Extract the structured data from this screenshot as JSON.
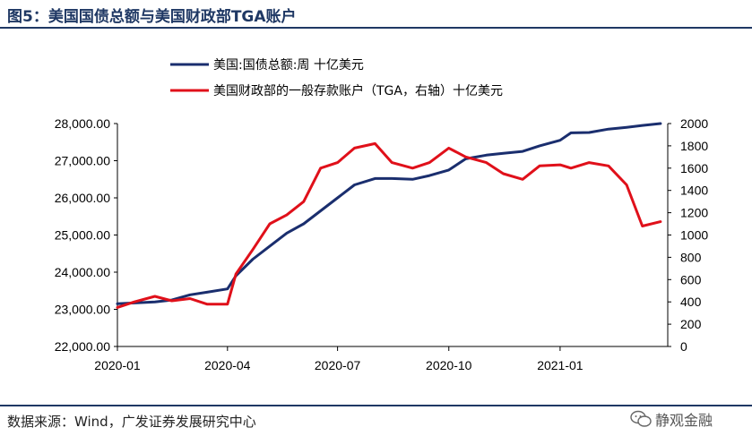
{
  "figure": {
    "title": "图5：美国国债总额与美国财政部TGA账户",
    "source": "数据来源：Wind，广发证券发展研究中心",
    "watermark": "静观金融"
  },
  "colors": {
    "title": "#1f3864",
    "debt": "#1a2e6e",
    "tga": "#e0101a",
    "axis": "#000000"
  },
  "chart_data": {
    "type": "line",
    "title": "",
    "x_ticks": [
      "2020-01",
      "2020-04",
      "2020-07",
      "2020-10",
      "2021-01"
    ],
    "x_range": [
      "2020-01-01",
      "2021-03-31"
    ],
    "y_left": {
      "label": "",
      "range": [
        22000,
        28000
      ],
      "ticks": [
        "22,000.00",
        "23,000.00",
        "24,000.00",
        "25,000.00",
        "26,000.00",
        "27,000.00",
        "28,000.00"
      ]
    },
    "y_right": {
      "label": "",
      "range": [
        0,
        2000
      ],
      "ticks": [
        "0",
        "200",
        "400",
        "600",
        "800",
        "1000",
        "1200",
        "1400",
        "1600",
        "1800",
        "2000"
      ]
    },
    "grid": false,
    "legend_position": "top",
    "series": [
      {
        "name": "美国:国债总额:周 十亿美元",
        "axis": "left",
        "color": "#1a2e6e",
        "points": [
          [
            "2020-01-01",
            23150
          ],
          [
            "2020-01-15",
            23170
          ],
          [
            "2020-02-01",
            23200
          ],
          [
            "2020-02-15",
            23250
          ],
          [
            "2020-03-01",
            23390
          ],
          [
            "2020-03-15",
            23460
          ],
          [
            "2020-04-01",
            23550
          ],
          [
            "2020-04-08",
            23900
          ],
          [
            "2020-04-22",
            24350
          ],
          [
            "2020-05-06",
            24700
          ],
          [
            "2020-05-20",
            25050
          ],
          [
            "2020-06-03",
            25300
          ],
          [
            "2020-06-17",
            25650
          ],
          [
            "2020-07-01",
            26000
          ],
          [
            "2020-07-15",
            26350
          ],
          [
            "2020-08-01",
            26520
          ],
          [
            "2020-08-15",
            26520
          ],
          [
            "2020-09-01",
            26500
          ],
          [
            "2020-09-15",
            26600
          ],
          [
            "2020-10-01",
            26750
          ],
          [
            "2020-10-15",
            27050
          ],
          [
            "2020-11-01",
            27150
          ],
          [
            "2020-11-15",
            27200
          ],
          [
            "2020-12-01",
            27250
          ],
          [
            "2020-12-15",
            27400
          ],
          [
            "2021-01-01",
            27550
          ],
          [
            "2021-01-10",
            27750
          ],
          [
            "2021-01-25",
            27760
          ],
          [
            "2021-02-10",
            27850
          ],
          [
            "2021-02-25",
            27900
          ],
          [
            "2021-03-10",
            27950
          ],
          [
            "2021-03-25",
            28000
          ]
        ]
      },
      {
        "name": "美国财政部的一般存款账户（TGA，右轴）十亿美元",
        "axis": "right",
        "color": "#e0101a",
        "points": [
          [
            "2020-01-01",
            350
          ],
          [
            "2020-01-15",
            400
          ],
          [
            "2020-02-01",
            450
          ],
          [
            "2020-02-15",
            410
          ],
          [
            "2020-03-01",
            430
          ],
          [
            "2020-03-15",
            380
          ],
          [
            "2020-04-01",
            380
          ],
          [
            "2020-04-08",
            650
          ],
          [
            "2020-04-22",
            870
          ],
          [
            "2020-05-06",
            1100
          ],
          [
            "2020-05-20",
            1180
          ],
          [
            "2020-06-03",
            1300
          ],
          [
            "2020-06-17",
            1600
          ],
          [
            "2020-07-01",
            1650
          ],
          [
            "2020-07-15",
            1780
          ],
          [
            "2020-08-01",
            1820
          ],
          [
            "2020-08-15",
            1650
          ],
          [
            "2020-09-01",
            1600
          ],
          [
            "2020-09-15",
            1650
          ],
          [
            "2020-10-01",
            1780
          ],
          [
            "2020-10-15",
            1700
          ],
          [
            "2020-11-01",
            1650
          ],
          [
            "2020-11-15",
            1550
          ],
          [
            "2020-12-01",
            1500
          ],
          [
            "2020-12-15",
            1620
          ],
          [
            "2021-01-01",
            1630
          ],
          [
            "2021-01-10",
            1600
          ],
          [
            "2021-01-25",
            1650
          ],
          [
            "2021-02-10",
            1620
          ],
          [
            "2021-02-25",
            1450
          ],
          [
            "2021-03-10",
            1080
          ],
          [
            "2021-03-25",
            1120
          ]
        ]
      }
    ]
  }
}
